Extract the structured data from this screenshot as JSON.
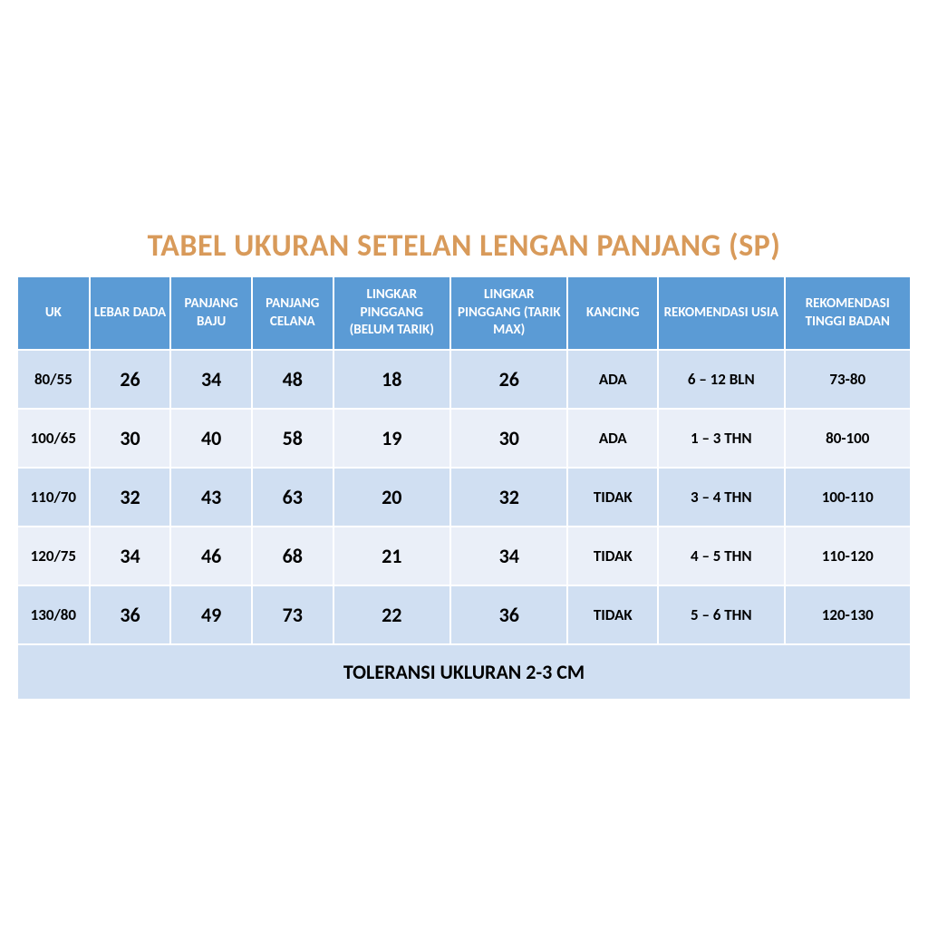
{
  "title": "TABEL UKURAN SETELAN LENGAN PANJANG (SP)",
  "columns": [
    "UK",
    "LEBAR DADA",
    "PANJANG BAJU",
    "PANJANG CELANA",
    "LINGKAR PINGGANG (BELUM TARIK)",
    "LINGKAR PINGGANG (TARIK MAX)",
    "KANCING",
    "REKOMENDASI USIA",
    "REKOMENDASI TINGGI BADAN"
  ],
  "rows": [
    {
      "uk": "80/55",
      "lebar": "26",
      "pbaju": "34",
      "pcelana": "48",
      "ling1": "18",
      "ling2": "26",
      "kancing": "ADA",
      "usia": "6 – 12  BLN",
      "tinggi": "73-80"
    },
    {
      "uk": "100/65",
      "lebar": "30",
      "pbaju": "40",
      "pcelana": "58",
      "ling1": "19",
      "ling2": "30",
      "kancing": "ADA",
      "usia": "1 – 3 THN",
      "tinggi": "80-100"
    },
    {
      "uk": "110/70",
      "lebar": "32",
      "pbaju": "43",
      "pcelana": "63",
      "ling1": "20",
      "ling2": "32",
      "kancing": "TIDAK",
      "usia": "3 – 4 THN",
      "tinggi": "100-110"
    },
    {
      "uk": "120/75",
      "lebar": "34",
      "pbaju": "46",
      "pcelana": "68",
      "ling1": "21",
      "ling2": "34",
      "kancing": "TIDAK",
      "usia": "4 – 5 THN",
      "tinggi": "110-120"
    },
    {
      "uk": "130/80",
      "lebar": "36",
      "pbaju": "49",
      "pcelana": "73",
      "ling1": "22",
      "ling2": "36",
      "kancing": "TIDAK",
      "usia": "5 – 6 THN",
      "tinggi": "120-130"
    }
  ],
  "footer": "TOLERANSI UKLURAN 2-3 CM",
  "colors": {
    "title": "#d89a5a",
    "header_bg": "#5b9bd5",
    "header_text": "#ffffff",
    "row_odd_bg": "#d0dff2",
    "row_even_bg": "#eaeff8",
    "cell_text": "#000000",
    "border": "#ffffff",
    "page_bg": "#ffffff"
  },
  "typography": {
    "title_fontsize": 34,
    "header_fontsize": 15,
    "cell_fontsize_main": 22,
    "cell_fontsize_small": 17,
    "footer_fontsize": 22,
    "font_family": "Calibri"
  }
}
